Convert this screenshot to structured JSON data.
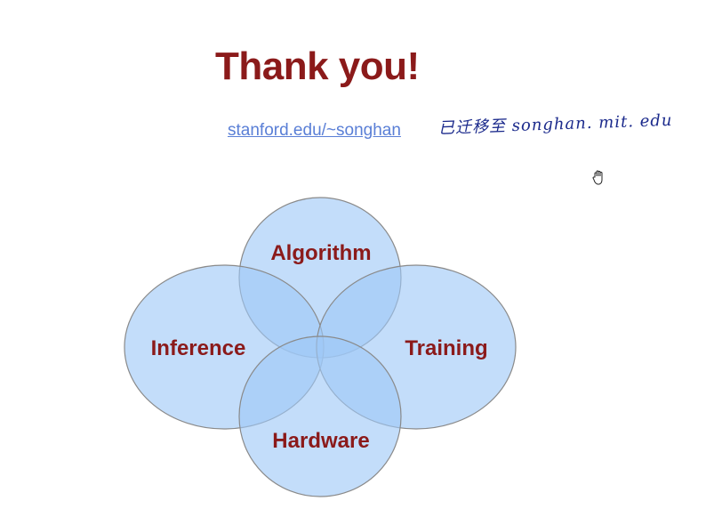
{
  "slide": {
    "title": "Thank you!",
    "link_text": "stanford.edu/~songhan",
    "handwritten_note": "已迁移至 songhan. mit. edu"
  },
  "diagram": {
    "fill_color": "#9ec8f7",
    "stroke_color": "#8a8a8a",
    "label_color": "#8b1a1a",
    "circles": [
      {
        "id": "algorithm",
        "label": "Algorithm"
      },
      {
        "id": "inference",
        "label": "Inference"
      },
      {
        "id": "training",
        "label": "Training"
      },
      {
        "id": "hardware",
        "label": "Hardware"
      }
    ]
  },
  "cursor": {
    "icon": "hand-cursor-icon"
  }
}
